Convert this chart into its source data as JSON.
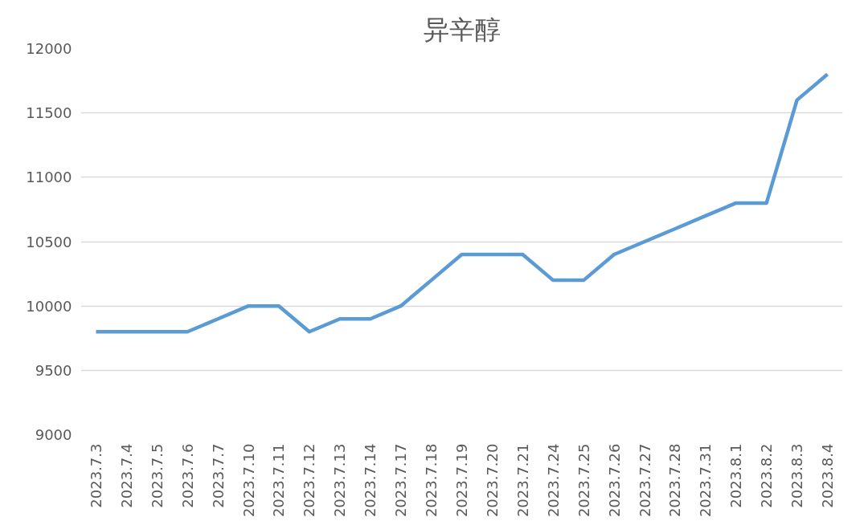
{
  "chart_data": {
    "type": "line",
    "title": "异辛醇",
    "categories": [
      "2023.7.3",
      "2023.7.4",
      "2023.7.5",
      "2023.7.6",
      "2023.7.7",
      "2023.7.10",
      "2023.7.11",
      "2023.7.12",
      "2023.7.13",
      "2023.7.14",
      "2023.7.17",
      "2023.7.18",
      "2023.7.19",
      "2023.7.20",
      "2023.7.21",
      "2023.7.24",
      "2023.7.25",
      "2023.7.26",
      "2023.7.27",
      "2023.7.28",
      "2023.7.31",
      "2023.8.1",
      "2023.8.2",
      "2023.8.3",
      "2023.8.4"
    ],
    "series": [
      {
        "color": "#5b9bd5",
        "values": [
          9800,
          9800,
          9800,
          9800,
          9900,
          10000,
          10000,
          9800,
          9900,
          9900,
          10000,
          10200,
          10400,
          10400,
          10400,
          10200,
          10200,
          10400,
          10500,
          10600,
          10700,
          10800,
          10800,
          11600,
          11800
        ]
      }
    ],
    "ylim": [
      9000,
      12000
    ],
    "yticks": [
      9000,
      9500,
      10000,
      10500,
      11000,
      11500,
      12000
    ],
    "grid": "y",
    "marker": "none",
    "line_style": "solid"
  }
}
